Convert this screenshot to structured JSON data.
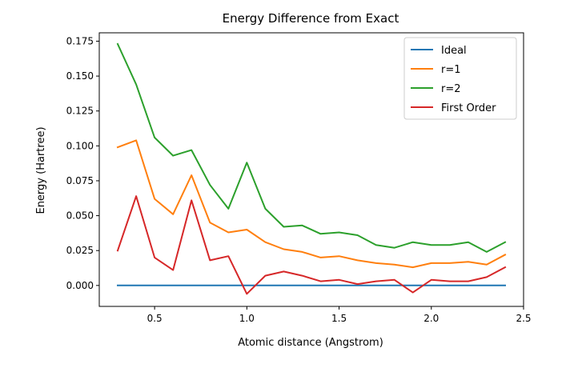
{
  "chart_data": {
    "type": "line",
    "title": "Energy Difference from Exact",
    "xlabel": "Atomic distance (Angstrom)",
    "ylabel": "Energy (Hartree)",
    "xlim": [
      0.2,
      2.5
    ],
    "ylim": [
      -0.015,
      0.181
    ],
    "xticks": [
      0.5,
      1.0,
      1.5,
      2.0,
      2.5
    ],
    "xtick_labels": [
      "0.5",
      "1.0",
      "1.5",
      "2.0",
      "2.5"
    ],
    "yticks": [
      0.0,
      0.025,
      0.05,
      0.075,
      0.1,
      0.125,
      0.15,
      0.175
    ],
    "ytick_labels": [
      "0.000",
      "0.025",
      "0.050",
      "0.075",
      "0.100",
      "0.125",
      "0.150",
      "0.175"
    ],
    "grid": false,
    "legend_position": "top-right",
    "x": [
      0.3,
      0.4,
      0.5,
      0.6,
      0.7,
      0.8,
      0.9,
      1.0,
      1.1,
      1.2,
      1.3,
      1.4,
      1.5,
      1.6,
      1.7,
      1.8,
      1.9,
      2.0,
      2.1,
      2.2,
      2.3,
      2.4
    ],
    "series": [
      {
        "name": "Ideal",
        "color": "#1f77b4",
        "values": [
          0,
          0,
          0,
          0,
          0,
          0,
          0,
          0,
          0,
          0,
          0,
          0,
          0,
          0,
          0,
          0,
          0,
          0,
          0,
          0,
          0,
          0
        ]
      },
      {
        "name": "r=1",
        "color": "#ff7f0e",
        "values": [
          0.099,
          0.104,
          0.062,
          0.051,
          0.079,
          0.045,
          0.038,
          0.04,
          0.031,
          0.026,
          0.024,
          0.02,
          0.021,
          0.018,
          0.016,
          0.015,
          0.013,
          0.016,
          0.016,
          0.017,
          0.015,
          0.022
        ]
      },
      {
        "name": "r=2",
        "color": "#2ca02c",
        "values": [
          0.173,
          0.144,
          0.106,
          0.093,
          0.097,
          0.072,
          0.055,
          0.088,
          0.055,
          0.042,
          0.043,
          0.037,
          0.038,
          0.036,
          0.029,
          0.027,
          0.031,
          0.029,
          0.029,
          0.031,
          0.024,
          0.031
        ]
      },
      {
        "name": "First Order",
        "color": "#d62728",
        "values": [
          0.025,
          0.064,
          0.02,
          0.011,
          0.061,
          0.018,
          0.021,
          -0.006,
          0.007,
          0.01,
          0.007,
          0.003,
          0.004,
          0.001,
          0.003,
          0.004,
          -0.005,
          0.004,
          0.003,
          0.003,
          0.006,
          0.013
        ]
      }
    ]
  }
}
